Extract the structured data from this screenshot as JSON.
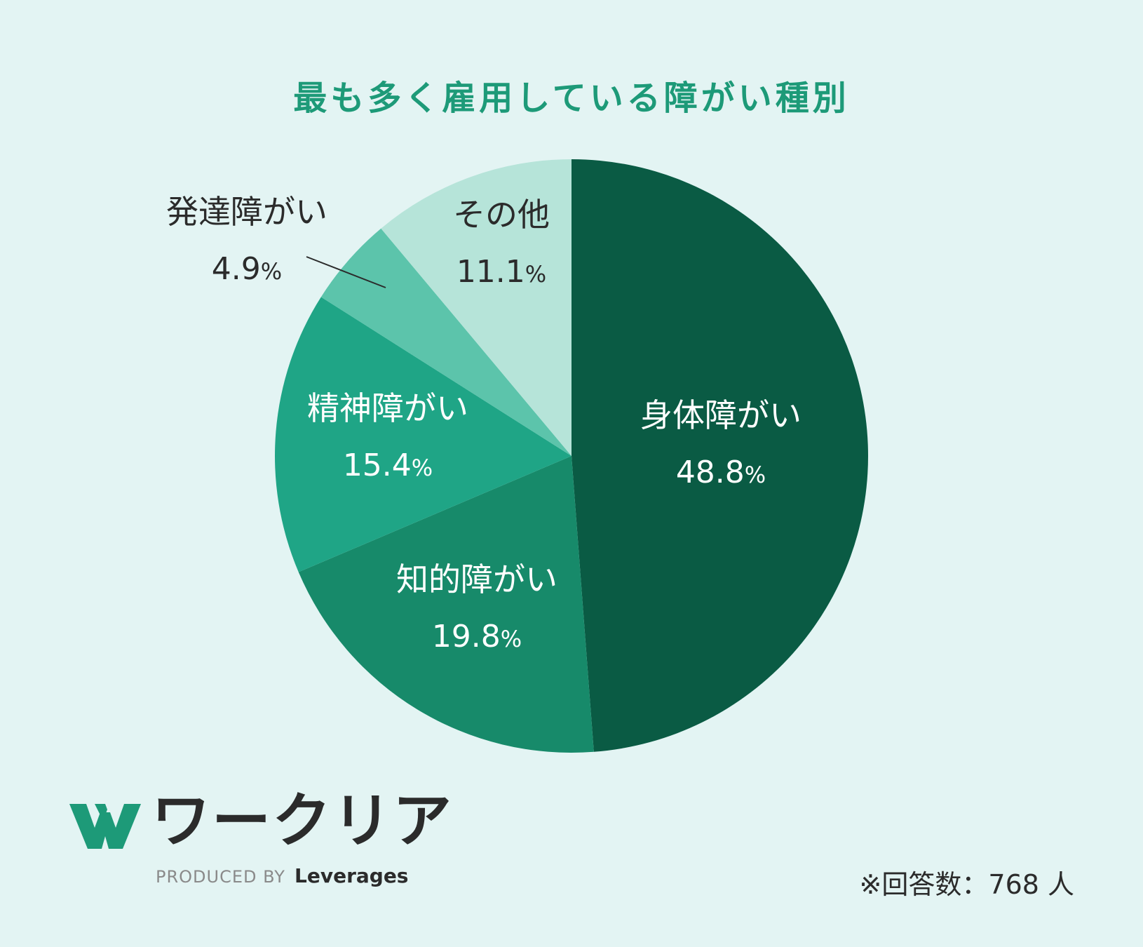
{
  "chart_data": {
    "type": "pie",
    "title": "最も多く雇用している障がい種別",
    "slices": [
      {
        "label": "身体障がい",
        "value": 48.8,
        "display": "48.8",
        "color": "#0a5b44",
        "text_color": "#ffffff"
      },
      {
        "label": "知的障がい",
        "value": 19.8,
        "display": "19.8",
        "color": "#178a6a",
        "text_color": "#ffffff"
      },
      {
        "label": "精神障がい",
        "value": 15.4,
        "display": "15.4",
        "color": "#1fa586",
        "text_color": "#ffffff"
      },
      {
        "label": "発達障がい",
        "value": 4.9,
        "display": "4.9",
        "color": "#5cc4ab",
        "text_color": "#2b2b2b"
      },
      {
        "label": "その他",
        "value": 11.1,
        "display": "11.1",
        "color": "#b6e4d9",
        "text_color": "#2b2b2b"
      }
    ],
    "unit": "%",
    "start": "12 o'clock, clockwise"
  },
  "footnote": "※回答数：768 人",
  "logo": {
    "name": "ワークリア",
    "produced_by": "PRODUCED BY",
    "company": "Leverages",
    "mark_color": "#1d9a78"
  }
}
